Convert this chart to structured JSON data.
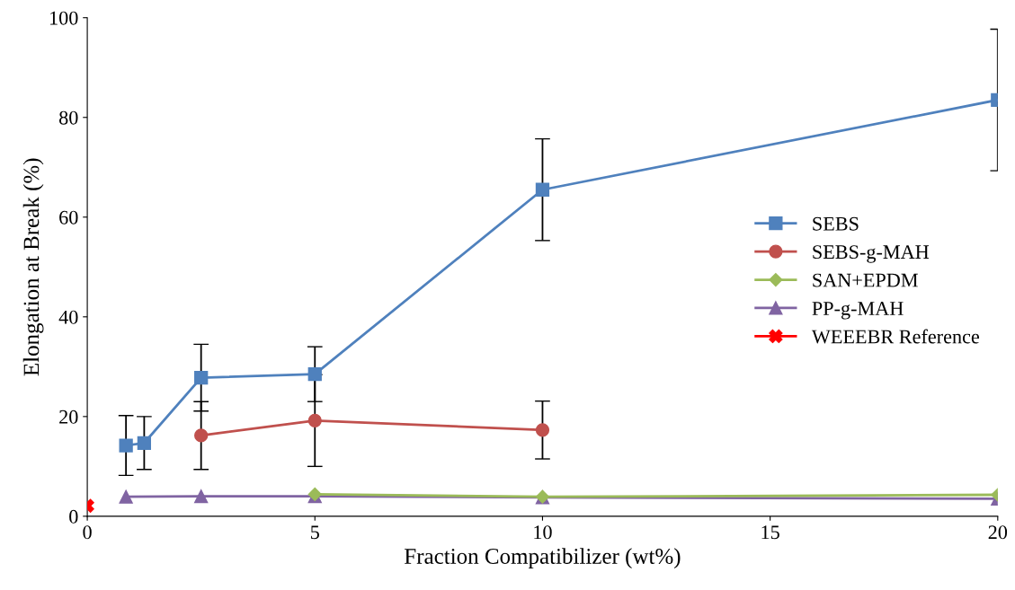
{
  "chart_data": {
    "type": "line",
    "xlabel": "Fraction Compatibilizer (wt%)",
    "ylabel": "Elongation at Break (%)",
    "xlim": [
      0,
      20
    ],
    "xticks": [
      0,
      5,
      10,
      15,
      20
    ],
    "ylim": [
      0,
      100
    ],
    "yticks": [
      0,
      20,
      40,
      60,
      80,
      100
    ],
    "grid": false,
    "legend": "right",
    "series": [
      {
        "name": "SEBS",
        "color": "#4f81bd",
        "marker": "square",
        "x": [
          0.85,
          1.25,
          2.5,
          5,
          10,
          20
        ],
        "values": [
          14.2,
          14.7,
          27.8,
          28.5,
          65.5,
          83.5
        ],
        "errors": [
          6,
          5.3,
          6.7,
          5.5,
          10.2,
          14.2
        ]
      },
      {
        "name": "SEBS-g-MAH",
        "color": "#c0504d",
        "marker": "circle",
        "x": [
          2.5,
          5,
          10
        ],
        "values": [
          16.2,
          19.2,
          17.3
        ],
        "errors": [
          6.8,
          9.2,
          5.8
        ]
      },
      {
        "name": "SAN+EPDM",
        "color": "#9bbb59",
        "marker": "diamond",
        "x": [
          5,
          10,
          20
        ],
        "values": [
          4.4,
          3.9,
          4.3
        ]
      },
      {
        "name": "PP-g-MAH",
        "color": "#8064a2",
        "marker": "triangle",
        "x": [
          0.85,
          2.5,
          5,
          10,
          20
        ],
        "values": [
          3.9,
          4.0,
          4.0,
          3.8,
          3.5
        ]
      },
      {
        "name": "WEEEBR Reference",
        "color": "#ff0000",
        "marker": "cross",
        "x": [
          0
        ],
        "values": [
          2.1
        ]
      }
    ]
  }
}
